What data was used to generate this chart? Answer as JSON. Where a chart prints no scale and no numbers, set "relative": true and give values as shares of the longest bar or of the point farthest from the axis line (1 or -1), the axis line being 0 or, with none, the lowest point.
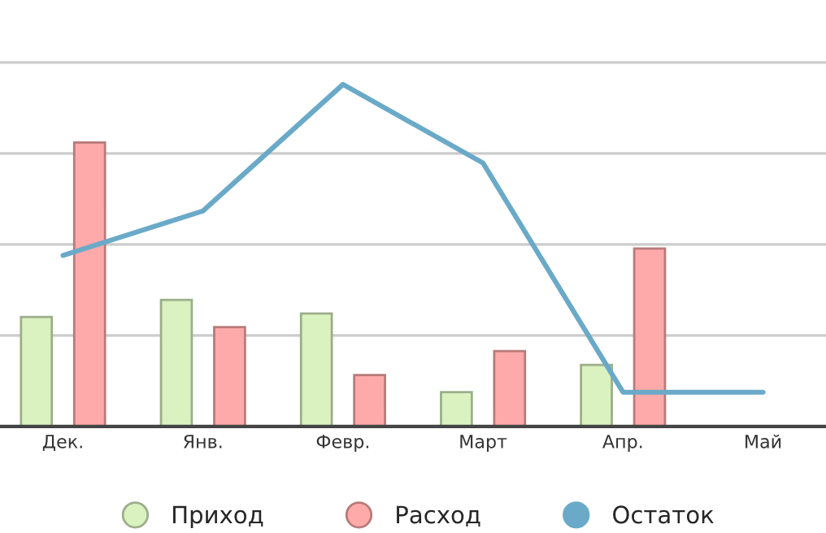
{
  "chart_data": {
    "type": "bar",
    "relative": true,
    "grid": "y",
    "legend": "bottom",
    "categories": [
      "Дек.",
      "Янв.",
      "Февр.",
      "Март",
      "Апр.",
      "Май"
    ],
    "series": [
      {
        "name": "Приход",
        "color": "#d9f2c0",
        "values": [
          0.32,
          0.37,
          0.33,
          0.1,
          0.18,
          0
        ]
      },
      {
        "name": "Расход",
        "color": "#ffaaaa",
        "values": [
          0.83,
          0.29,
          0.15,
          0.22,
          0.52,
          0
        ]
      },
      {
        "name": "Остаток",
        "type": "line",
        "color": "#6aaac8",
        "values": [
          0.5,
          0.63,
          1,
          0.77,
          0.1,
          0.1
        ]
      }
    ]
  }
}
